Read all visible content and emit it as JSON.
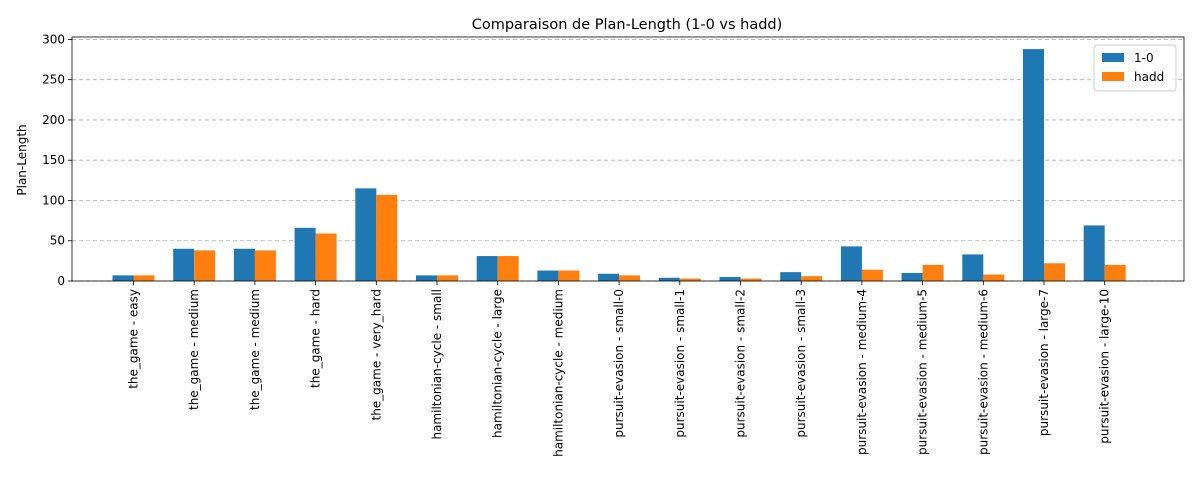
{
  "chart_data": {
    "type": "bar",
    "title": "Comparaison de Plan-Length (1-0 vs hadd)",
    "xlabel": "",
    "ylabel": "Plan-Length",
    "ylim": [
      0,
      303
    ],
    "yticks": [
      0,
      50,
      100,
      150,
      200,
      250,
      300
    ],
    "grid": "y-dashed",
    "legend": "top-right",
    "categories": [
      "the_game - easy",
      "the_game - medium",
      "the_game - medium",
      "the_game - hard",
      "the_game - very_hard",
      "hamiltonian-cycle - small",
      "hamiltonian-cycle - large",
      "hamiltonian-cycle - medium",
      "pursuit-evasion - small-0",
      "pursuit-evasion - small-1",
      "pursuit-evasion - small-2",
      "pursuit-evasion - small-3",
      "pursuit-evasion - medium-4",
      "pursuit-evasion - medium-5",
      "pursuit-evasion - medium-6",
      "pursuit-evasion - large-7",
      "pursuit-evasion - large-10"
    ],
    "series": [
      {
        "name": "1-0",
        "color": "#1f77b4",
        "values": [
          7,
          40,
          40,
          66,
          115,
          7,
          31,
          13,
          9,
          4,
          5,
          11,
          43,
          10,
          33,
          288,
          69
        ]
      },
      {
        "name": "hadd",
        "color": "#ff7f0e",
        "values": [
          7,
          38,
          38,
          59,
          107,
          7,
          31,
          13,
          7,
          3,
          3,
          6,
          14,
          20,
          8,
          22,
          20
        ]
      }
    ]
  }
}
